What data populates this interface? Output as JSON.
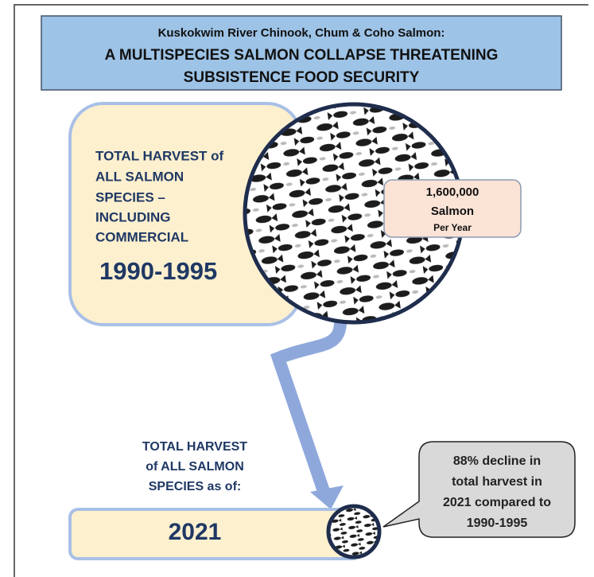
{
  "header": {
    "subtitle": "Kuskokwim River Chinook, Chum & Coho Salmon:",
    "title_lines": [
      "A MULTISPECIES SALMON COLLAPSE THREATENING",
      "SUBSISTENCE FOOD SECURITY"
    ]
  },
  "top_panel": {
    "label_lines": [
      "TOTAL HARVEST of",
      "ALL SALMON",
      "SPECIES –",
      "INCLUDING",
      "COMMERCIAL"
    ],
    "period": "1990-1995",
    "callout": {
      "amount": "1,600,000",
      "unit": "Salmon",
      "rate": "Per Year"
    }
  },
  "bottom_panel": {
    "label_lines": [
      "TOTAL HARVEST",
      "of ALL SALMON",
      "SPECIES as of:"
    ],
    "year": "2021"
  },
  "decline_callout": {
    "lines": [
      "88% decline in",
      "total harvest in",
      "2021 compared to",
      "1990-1995"
    ]
  }
}
